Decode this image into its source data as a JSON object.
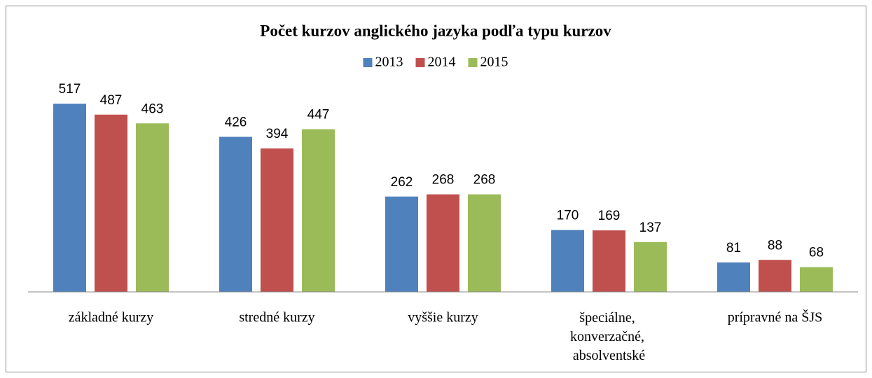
{
  "chart_data": {
    "type": "bar",
    "title": "Počet kurzov anglického jazyka podľa typu kurzov",
    "categories": [
      "základné kurzy",
      "stredné kurzy",
      "vyššie kurzy",
      "špeciálne, konverzačné, absolventské",
      "prípravné na ŠJS"
    ],
    "series": [
      {
        "name": "2013",
        "color": "#4f81bd",
        "values": [
          517,
          426,
          262,
          170,
          81
        ]
      },
      {
        "name": "2014",
        "color": "#c0504d",
        "values": [
          487,
          394,
          268,
          169,
          88
        ]
      },
      {
        "name": "2015",
        "color": "#9bbb59",
        "values": [
          463,
          447,
          268,
          137,
          68
        ]
      }
    ],
    "ylim": [
      0,
      600
    ],
    "legend": "top"
  }
}
